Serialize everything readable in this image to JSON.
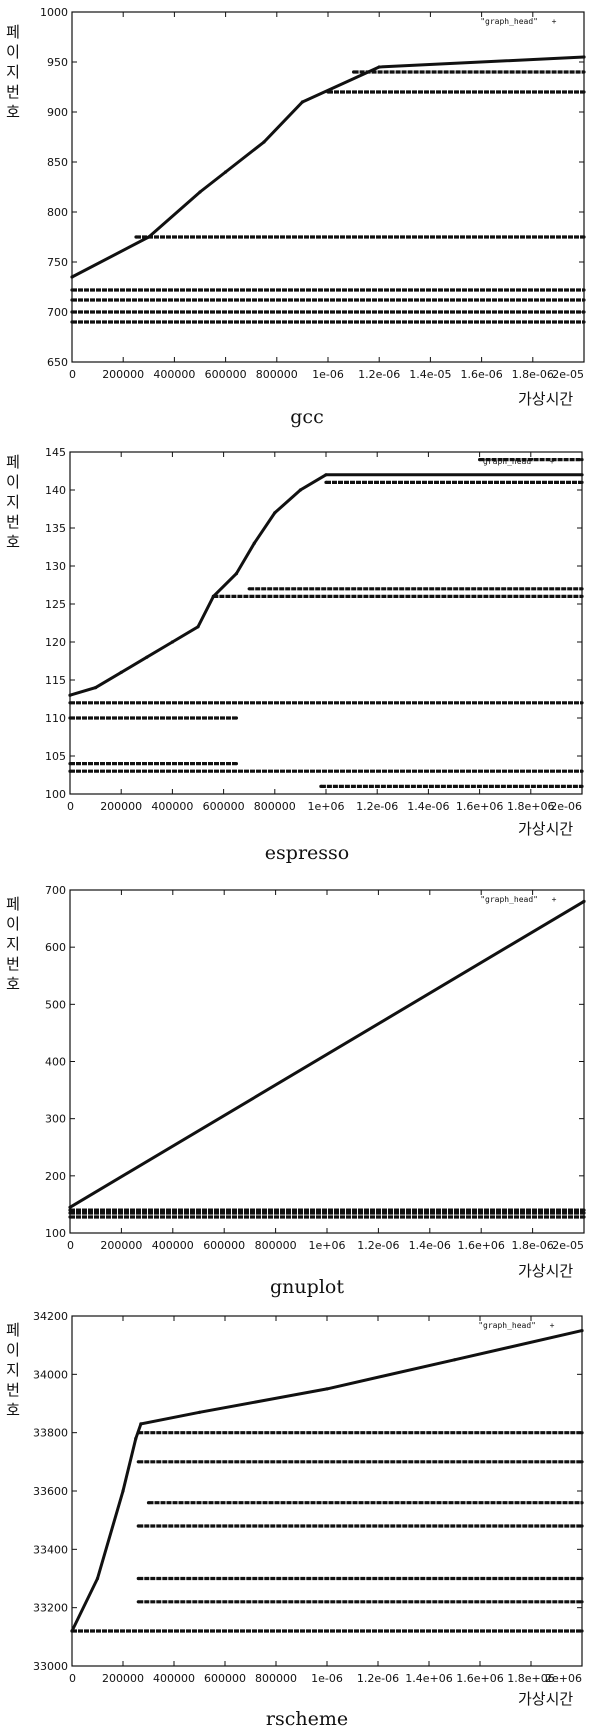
{
  "chart_data": [
    {
      "type": "scatter",
      "title": "gcc",
      "xlabel": "가상시간",
      "ylabel": "페이지번호",
      "legend": "\"graph_head\"",
      "legend_position": "top-right",
      "xlim": [
        0,
        2000000
      ],
      "ylim": [
        650,
        1000
      ],
      "xticks": [
        "0",
        "200000",
        "400000",
        "600000",
        "800000",
        "1e-06",
        "1.2e-06",
        "1.4e-05",
        "1.6e-06",
        "1.8e-06",
        "2e-05"
      ],
      "yticks": [
        "650",
        "700",
        "750",
        "800",
        "850",
        "900",
        "950",
        "1000"
      ],
      "series": [
        {
          "values": [
            [
              0,
              735
            ],
            [
              300000,
              775
            ],
            [
              500000,
              820
            ],
            [
              600000,
              840
            ],
            [
              750000,
              870
            ],
            [
              900000,
              910
            ],
            [
              1200000,
              945
            ],
            [
              2000000,
              955
            ]
          ]
        },
        {
          "values": [
            [
              0,
              690
            ],
            [
              2000000,
              690
            ]
          ]
        },
        {
          "values": [
            [
              0,
              700
            ],
            [
              2000000,
              700
            ]
          ]
        },
        {
          "values": [
            [
              0,
              712
            ],
            [
              2000000,
              712
            ]
          ]
        },
        {
          "values": [
            [
              0,
              722
            ],
            [
              2000000,
              722
            ]
          ]
        },
        {
          "values": [
            [
              250000,
              775
            ],
            [
              2000000,
              775
            ]
          ]
        },
        {
          "values": [
            [
              1000000,
              920
            ],
            [
              2000000,
              920
            ]
          ]
        },
        {
          "values": [
            [
              1100000,
              940
            ],
            [
              2000000,
              940
            ]
          ]
        }
      ]
    },
    {
      "type": "scatter",
      "title": "espresso",
      "xlabel": "가상시간",
      "ylabel": "페이지번호",
      "legend": "\"graph_head\"",
      "legend_position": "top-right",
      "xlim": [
        0,
        2000000
      ],
      "ylim": [
        100,
        145
      ],
      "xticks": [
        "0",
        "200000",
        "400000",
        "600000",
        "800000",
        "1e+06",
        "1.2e-06",
        "1.4e-06",
        "1.6e+06",
        "1.8e+06",
        "2e-06"
      ],
      "yticks": [
        "100",
        "105",
        "110",
        "115",
        "120",
        "125",
        "130",
        "135",
        "140",
        "145"
      ],
      "series": [
        {
          "values": [
            [
              0,
              113
            ],
            [
              100000,
              114
            ],
            [
              200000,
              116
            ],
            [
              300000,
              118
            ],
            [
              400000,
              120
            ],
            [
              500000,
              122
            ],
            [
              560000,
              126
            ],
            [
              650000,
              129
            ],
            [
              720000,
              133
            ],
            [
              800000,
              137
            ],
            [
              900000,
              140
            ],
            [
              1000000,
              142
            ],
            [
              2000000,
              142
            ]
          ]
        },
        {
          "values": [
            [
              0,
              112
            ],
            [
              2000000,
              112
            ]
          ]
        },
        {
          "values": [
            [
              0,
              110
            ],
            [
              650000,
              110
            ]
          ]
        },
        {
          "values": [
            [
              0,
              103
            ],
            [
              2000000,
              103
            ]
          ]
        },
        {
          "values": [
            [
              0,
              104
            ],
            [
              650000,
              104
            ]
          ]
        },
        {
          "values": [
            [
              980000,
              101
            ],
            [
              2000000,
              101
            ]
          ]
        },
        {
          "values": [
            [
              560000,
              126
            ],
            [
              2000000,
              126
            ]
          ]
        },
        {
          "values": [
            [
              700000,
              127
            ],
            [
              2000000,
              127
            ]
          ]
        },
        {
          "values": [
            [
              1000000,
              141
            ],
            [
              2000000,
              141
            ]
          ]
        },
        {
          "values": [
            [
              1600000,
              144
            ],
            [
              2000000,
              144
            ]
          ]
        }
      ]
    },
    {
      "type": "scatter",
      "title": "gnuplot",
      "xlabel": "가상시간",
      "ylabel": "페이지번호",
      "legend": "\"graph_head\"",
      "legend_position": "top-right",
      "xlim": [
        0,
        2000000
      ],
      "ylim": [
        100,
        700
      ],
      "xticks": [
        "0",
        "200000",
        "400000",
        "600000",
        "800000",
        "1e+06",
        "1.2e-06",
        "1.4e-06",
        "1.6e+06",
        "1.8e-06",
        "2e-05"
      ],
      "yticks": [
        "100",
        "200",
        "300",
        "400",
        "500",
        "600",
        "700"
      ],
      "series": [
        {
          "values": [
            [
              0,
              145
            ],
            [
              2000000,
              680
            ]
          ]
        },
        {
          "values": [
            [
              0,
              135
            ],
            [
              2000000,
              135
            ]
          ]
        },
        {
          "values": [
            [
              0,
              140
            ],
            [
              2000000,
              140
            ]
          ]
        },
        {
          "values": [
            [
              0,
              128
            ],
            [
              2000000,
              128
            ]
          ]
        }
      ]
    },
    {
      "type": "scatter",
      "title": "rscheme",
      "xlabel": "가상시간",
      "ylabel": "페이지번호",
      "legend": "\"graph_head\"",
      "legend_position": "top-right",
      "xlim": [
        0,
        2000000
      ],
      "ylim": [
        33000,
        34200
      ],
      "xticks": [
        "0",
        "200000",
        "400000",
        "600000",
        "800000",
        "1e-06",
        "1.2e-06",
        "1.4e+06",
        "1.6e+06",
        "1.8e+06",
        "2e+06"
      ],
      "yticks": [
        "33000",
        "33200",
        "33400",
        "33600",
        "33800",
        "34000",
        "34200"
      ],
      "series": [
        {
          "values": [
            [
              0,
              33120
            ],
            [
              100000,
              33300
            ],
            [
              200000,
              33600
            ],
            [
              250000,
              33780
            ],
            [
              270000,
              33830
            ],
            [
              500000,
              33870
            ],
            [
              1000000,
              33950
            ],
            [
              1500000,
              34050
            ],
            [
              2000000,
              34150
            ]
          ]
        },
        {
          "values": [
            [
              0,
              33120
            ],
            [
              2000000,
              33120
            ]
          ]
        },
        {
          "values": [
            [
              260000,
              33800
            ],
            [
              2000000,
              33800
            ]
          ]
        },
        {
          "values": [
            [
              260000,
              33700
            ],
            [
              2000000,
              33700
            ]
          ]
        },
        {
          "values": [
            [
              260000,
              33480
            ],
            [
              2000000,
              33480
            ]
          ]
        },
        {
          "values": [
            [
              260000,
              33220
            ],
            [
              2000000,
              33220
            ]
          ]
        },
        {
          "values": [
            [
              260000,
              33300
            ],
            [
              2000000,
              33300
            ]
          ]
        },
        {
          "values": [
            [
              300000,
              33560
            ],
            [
              2000000,
              33560
            ]
          ]
        }
      ]
    }
  ]
}
